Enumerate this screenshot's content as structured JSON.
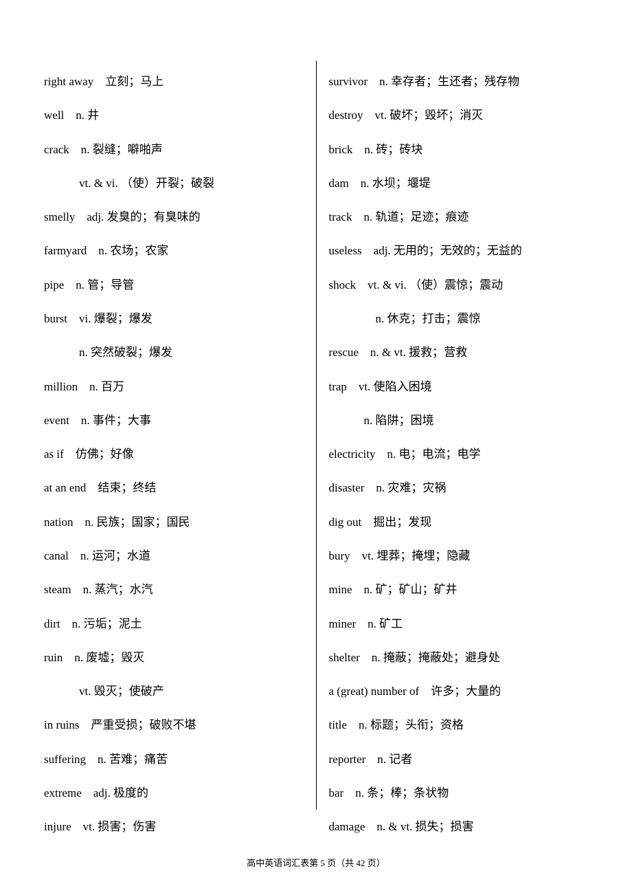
{
  "left_column": [
    "right away　立刻；马上",
    "well　n. 井",
    "crack　n. 裂缝；噼啪声",
    "　　　vt. & vi. （使）开裂；破裂",
    "smelly　adj. 发臭的；有臭味的",
    "farmyard　n. 农场；农家",
    "pipe　n. 管；导管",
    "burst　vi. 爆裂；爆发",
    "　　　n. 突然破裂；爆发",
    "million　n. 百万",
    "event　n. 事件；大事",
    "as if　仿佛；好像",
    "at an end　结束；终结",
    "nation　n. 民族；国家；国民",
    "canal　n. 运河；水道",
    "steam　n. 蒸汽；水汽",
    "dirt　n. 污垢；泥土",
    "ruin　n. 废墟；毁灭",
    "　　　vt. 毁灭；使破产",
    "in ruins　严重受损；破败不堪",
    "suffering　n. 苦难；痛苦",
    "extreme　adj. 极度的",
    "injure　vt. 损害；伤害"
  ],
  "right_column": [
    "survivor　n. 幸存者；生还者；残存物",
    "destroy　vt. 破坏；毁坏；消灭",
    "brick　n. 砖；砖块",
    "dam　n. 水坝；堰堤",
    "track　n. 轨道；足迹；痕迹",
    "useless　adj. 无用的；无效的；无益的",
    "shock　vt. & vi. （使）震惊；震动",
    "　　　　n. 休克；打击；震惊",
    "rescue　n. & vt. 援救；营救",
    "trap　vt. 使陷入困境",
    "　　　n. 陷阱；困境",
    "electricity　n. 电；电流；电学",
    "disaster　n. 灾难；灾祸",
    "dig out　掘出；发现",
    "bury　vt. 埋葬；掩埋；隐藏",
    "mine　n. 矿；矿山；矿井",
    "miner　n. 矿工",
    "shelter　n. 掩蔽；掩蔽处；避身处",
    "a (great) number of　许多；大量的",
    "title　n. 标题；头衔；资格",
    "reporter　n. 记者",
    "bar　n. 条；棒；条状物",
    "damage　n. & vt. 损失；损害"
  ],
  "footer": "高中英语词汇表第 5 页（共 42 页）"
}
